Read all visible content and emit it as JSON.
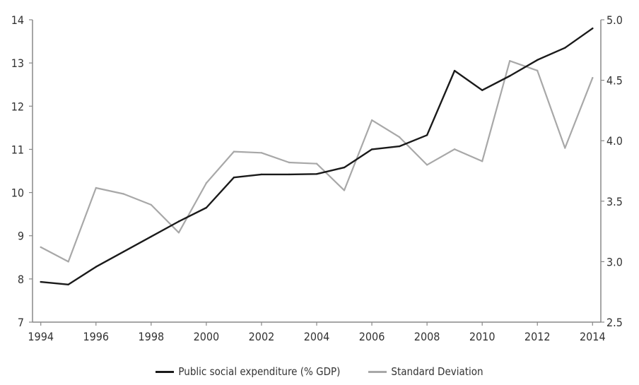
{
  "chart_data": {
    "type": "line",
    "title": "",
    "xlabel": "",
    "ylabel": "",
    "y2label": "",
    "x": [
      1994,
      1995,
      1996,
      1997,
      1998,
      1999,
      2000,
      2001,
      2002,
      2003,
      2004,
      2005,
      2006,
      2007,
      2008,
      2009,
      2010,
      2011,
      2012,
      2013,
      2014
    ],
    "x_tick_labels": [
      "1994",
      "1996",
      "1998",
      "2000",
      "2002",
      "2004",
      "2006",
      "2008",
      "2010",
      "2012",
      "2014"
    ],
    "x_tick_values": [
      1994,
      1996,
      1998,
      2000,
      2002,
      2004,
      2006,
      2008,
      2010,
      2012,
      2014
    ],
    "xlim": [
      1993.7,
      2014.3
    ],
    "ylim_left": [
      7,
      14
    ],
    "ylim_right": [
      2.5,
      5.0
    ],
    "y_left_tick_labels": [
      "7",
      "8",
      "9",
      "10",
      "11",
      "12",
      "13",
      "14"
    ],
    "y_left_tick_values": [
      7,
      8,
      9,
      10,
      11,
      12,
      13,
      14
    ],
    "y_right_tick_labels": [
      "2.5",
      "3.0",
      "3.5",
      "4.0",
      "4.5",
      "5.0"
    ],
    "y_right_tick_values": [
      2.5,
      3.0,
      3.5,
      4.0,
      4.5,
      5.0
    ],
    "grid": false,
    "legend_position": "bottom-center",
    "series": [
      {
        "name": "Public social expenditure (% GDP)",
        "axis": "left",
        "color": "#1a1a1a",
        "values": [
          7.93,
          7.87,
          8.28,
          8.63,
          8.98,
          9.33,
          9.65,
          10.35,
          10.42,
          10.42,
          10.43,
          10.58,
          11.0,
          11.07,
          11.33,
          12.82,
          12.37,
          12.7,
          13.07,
          13.35,
          13.8
        ]
      },
      {
        "name": "Standard Deviation",
        "axis": "right",
        "color": "#a8a8a8",
        "values": [
          3.12,
          3.0,
          3.61,
          3.56,
          3.47,
          3.24,
          3.65,
          3.91,
          3.9,
          3.82,
          3.81,
          3.59,
          4.17,
          4.03,
          3.8,
          3.93,
          3.83,
          4.66,
          4.58,
          3.94,
          4.52
        ]
      }
    ]
  }
}
